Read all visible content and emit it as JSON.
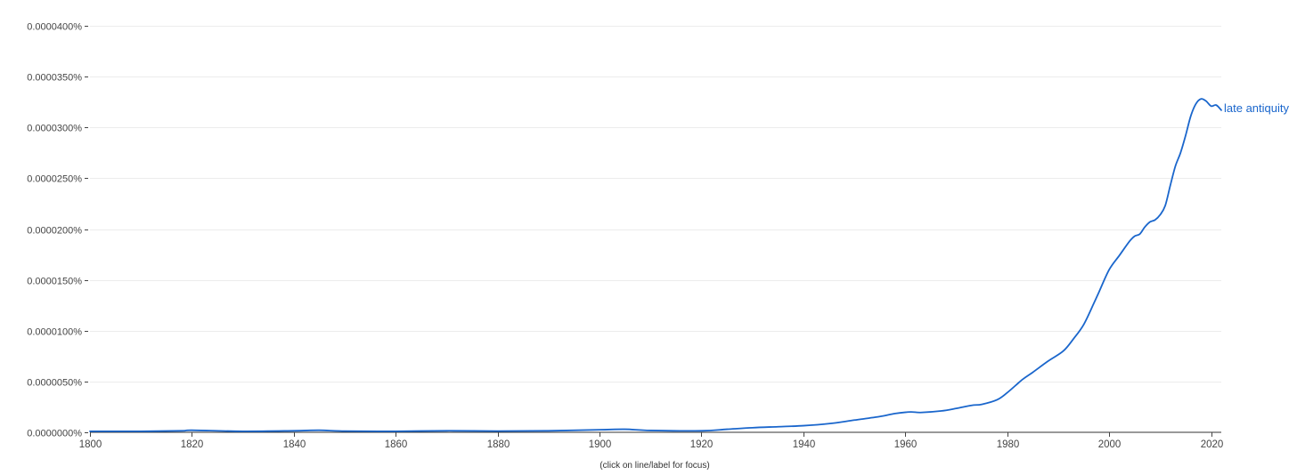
{
  "chart_data": {
    "type": "line",
    "title": "",
    "xlabel": "",
    "ylabel": "",
    "xlim": [
      1800,
      2022
    ],
    "ylim": [
      0,
      4e-07
    ],
    "grid": true,
    "legend": "inline-right-end",
    "x_ticks": [
      1800,
      1820,
      1840,
      1860,
      1880,
      1900,
      1920,
      1940,
      1960,
      1980,
      2000,
      2020
    ],
    "x_tick_labels": [
      "1800",
      "1820",
      "1840",
      "1860",
      "1880",
      "1900",
      "1920",
      "1940",
      "1960",
      "1980",
      "2000",
      "2020"
    ],
    "y_ticks": [
      0,
      5e-08,
      1e-07,
      1.5e-07,
      2e-07,
      2.5e-07,
      3e-07,
      3.5e-07,
      4e-07
    ],
    "y_tick_labels": [
      "0.0000000%",
      "0.0000050%",
      "0.0000100%",
      "0.0000150%",
      "0.0000200%",
      "0.0000250%",
      "0.0000300%",
      "0.0000350%",
      "0.0000400%"
    ],
    "hint": "(click on line/label for focus)",
    "series": [
      {
        "name": "late antiquity",
        "color": "#1a66cc",
        "points": [
          [
            1800,
            1e-09
          ],
          [
            1810,
            1e-09
          ],
          [
            1818,
            1.5e-09
          ],
          [
            1820,
            2e-09
          ],
          [
            1830,
            1e-09
          ],
          [
            1840,
            1.5e-09
          ],
          [
            1845,
            2e-09
          ],
          [
            1850,
            1.2e-09
          ],
          [
            1860,
            1e-09
          ],
          [
            1870,
            1.5e-09
          ],
          [
            1880,
            1.2e-09
          ],
          [
            1890,
            1.5e-09
          ],
          [
            1900,
            2.5e-09
          ],
          [
            1905,
            3e-09
          ],
          [
            1910,
            1.8e-09
          ],
          [
            1920,
            1.5e-09
          ],
          [
            1925,
            3e-09
          ],
          [
            1930,
            4.5e-09
          ],
          [
            1935,
            5.5e-09
          ],
          [
            1940,
            6.5e-09
          ],
          [
            1945,
            8.5e-09
          ],
          [
            1950,
            1.2e-08
          ],
          [
            1955,
            1.55e-08
          ],
          [
            1958,
            1.85e-08
          ],
          [
            1961,
            2e-08
          ],
          [
            1963,
            1.95e-08
          ],
          [
            1967,
            2.1e-08
          ],
          [
            1970,
            2.35e-08
          ],
          [
            1973,
            2.65e-08
          ],
          [
            1975,
            2.75e-08
          ],
          [
            1978,
            3.2e-08
          ],
          [
            1980,
            3.9e-08
          ],
          [
            1983,
            5.2e-08
          ],
          [
            1985,
            5.9e-08
          ],
          [
            1988,
            7e-08
          ],
          [
            1991,
            8e-08
          ],
          [
            1993,
            9.2e-08
          ],
          [
            1995,
            1.06e-07
          ],
          [
            1997,
            1.27e-07
          ],
          [
            1998,
            1.38e-07
          ],
          [
            2000,
            1.6e-07
          ],
          [
            2002,
            1.74e-07
          ],
          [
            2004,
            1.88e-07
          ],
          [
            2005,
            1.93e-07
          ],
          [
            2006,
            1.95e-07
          ],
          [
            2007,
            2.02e-07
          ],
          [
            2008,
            2.07e-07
          ],
          [
            2009,
            2.09e-07
          ],
          [
            2010,
            2.14e-07
          ],
          [
            2011,
            2.23e-07
          ],
          [
            2012,
            2.43e-07
          ],
          [
            2013,
            2.62e-07
          ],
          [
            2014,
            2.75e-07
          ],
          [
            2015,
            2.92e-07
          ],
          [
            2016,
            3.11e-07
          ],
          [
            2017,
            3.23e-07
          ],
          [
            2018,
            3.28e-07
          ],
          [
            2019,
            3.26e-07
          ],
          [
            2020,
            3.21e-07
          ],
          [
            2021,
            3.22e-07
          ],
          [
            2022,
            3.17e-07
          ]
        ]
      }
    ]
  }
}
